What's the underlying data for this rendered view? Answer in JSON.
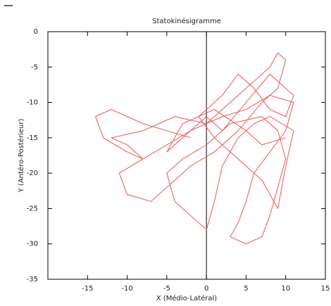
{
  "chart_data": {
    "type": "line",
    "title": "Statokinésigramme",
    "x_label": "X (Médio-Latéral)",
    "y_label": "Y (Antéro-Postérieur)",
    "x": [
      -2,
      -8,
      -12,
      -14,
      -13,
      -10,
      -8,
      -10,
      -12,
      -8,
      -4,
      0,
      3,
      6,
      8,
      9,
      10,
      9,
      7,
      4,
      1,
      -2,
      -5,
      -7,
      -10,
      -11,
      -8,
      -5,
      -2,
      2,
      5,
      8,
      11,
      10,
      8,
      6,
      5,
      4,
      3,
      5,
      7,
      8,
      9,
      10,
      9,
      7,
      3,
      0,
      -3,
      -5,
      -4,
      -2,
      0,
      1,
      2,
      4,
      6,
      8,
      11,
      10,
      9,
      7,
      4,
      1,
      -1,
      2,
      4,
      6,
      8,
      10,
      11,
      8,
      5,
      2,
      0,
      -3,
      -5,
      -3,
      1,
      5,
      7,
      10
    ],
    "series": [
      {
        "color": "#f06262",
        "values": [
          -15,
          -13,
          -11,
          -12,
          -15,
          -17,
          -18,
          -16,
          -15,
          -14,
          -12,
          -13,
          -10,
          -7,
          -5,
          -3,
          -4,
          -8,
          -10,
          -14,
          -17,
          -19,
          -22,
          -24,
          -23,
          -20,
          -18,
          -16,
          -14,
          -12,
          -11,
          -9,
          -10,
          -14,
          -17,
          -20,
          -24,
          -27,
          -29,
          -30,
          -29,
          -26,
          -22,
          -18,
          -14,
          -12,
          -13,
          -16,
          -18,
          -20,
          -24,
          -26,
          -28,
          -24,
          -19,
          -15,
          -13,
          -12,
          -14,
          -19,
          -25,
          -21,
          -18,
          -15,
          -12,
          -9,
          -6,
          -8,
          -11,
          -12,
          -9,
          -6,
          -10,
          -14,
          -12,
          -15,
          -17,
          -13,
          -11,
          -14,
          -16,
          -15
        ]
      }
    ],
    "xlim": [
      -20,
      15
    ],
    "xticks": [
      -15,
      -10,
      -5,
      0,
      5,
      10,
      15
    ],
    "ylim": [
      -35,
      0
    ],
    "yticks": [
      0,
      -5,
      -10,
      -15,
      -20,
      -25,
      -30,
      -35
    ]
  }
}
